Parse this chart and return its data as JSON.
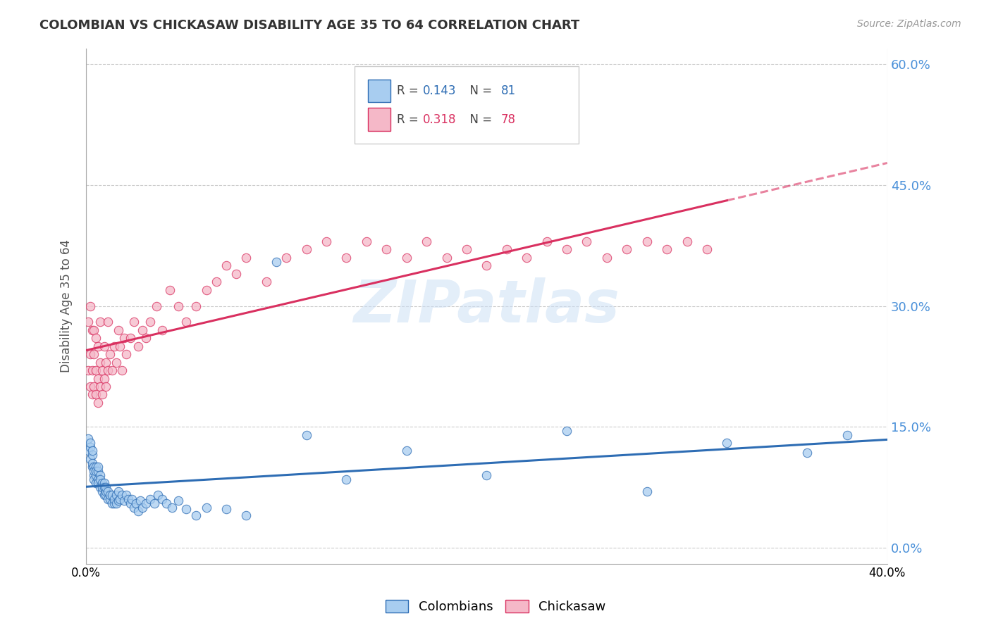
{
  "title": "COLOMBIAN VS CHICKASAW DISABILITY AGE 35 TO 64 CORRELATION CHART",
  "source": "Source: ZipAtlas.com",
  "ylabel": "Disability Age 35 to 64",
  "yticks_labels": [
    "0.0%",
    "15.0%",
    "30.0%",
    "45.0%",
    "60.0%"
  ],
  "ytick_vals": [
    0.0,
    0.15,
    0.3,
    0.45,
    0.6
  ],
  "xlim": [
    0.0,
    0.4
  ],
  "ylim": [
    -0.02,
    0.62
  ],
  "watermark": "ZIPatlas",
  "legend_label1": "Colombians",
  "legend_label2": "Chickasaw",
  "color_colombian": "#a8cdf0",
  "color_chickasaw": "#f5b8c8",
  "trendline_color_colombian": "#2e6db4",
  "trendline_color_chickasaw": "#d93060",
  "yticklabel_color": "#4a90d9",
  "colombian_x": [
    0.001,
    0.001,
    0.002,
    0.002,
    0.002,
    0.003,
    0.003,
    0.003,
    0.003,
    0.004,
    0.004,
    0.004,
    0.004,
    0.005,
    0.005,
    0.005,
    0.005,
    0.006,
    0.006,
    0.006,
    0.006,
    0.007,
    0.007,
    0.007,
    0.008,
    0.008,
    0.008,
    0.009,
    0.009,
    0.009,
    0.01,
    0.01,
    0.01,
    0.011,
    0.011,
    0.012,
    0.012,
    0.013,
    0.013,
    0.014,
    0.014,
    0.015,
    0.015,
    0.016,
    0.016,
    0.017,
    0.018,
    0.019,
    0.02,
    0.021,
    0.022,
    0.023,
    0.024,
    0.025,
    0.026,
    0.027,
    0.028,
    0.03,
    0.032,
    0.034,
    0.036,
    0.038,
    0.04,
    0.043,
    0.046,
    0.05,
    0.055,
    0.06,
    0.07,
    0.08,
    0.095,
    0.11,
    0.13,
    0.16,
    0.2,
    0.24,
    0.28,
    0.32,
    0.36,
    0.38
  ],
  "colombian_y": [
    0.12,
    0.135,
    0.11,
    0.125,
    0.13,
    0.1,
    0.115,
    0.12,
    0.105,
    0.09,
    0.1,
    0.085,
    0.095,
    0.08,
    0.09,
    0.1,
    0.095,
    0.085,
    0.08,
    0.095,
    0.1,
    0.075,
    0.09,
    0.085,
    0.07,
    0.08,
    0.075,
    0.065,
    0.08,
    0.075,
    0.065,
    0.07,
    0.075,
    0.06,
    0.07,
    0.06,
    0.065,
    0.055,
    0.065,
    0.055,
    0.06,
    0.055,
    0.065,
    0.058,
    0.07,
    0.06,
    0.065,
    0.058,
    0.065,
    0.06,
    0.055,
    0.06,
    0.05,
    0.055,
    0.045,
    0.058,
    0.05,
    0.055,
    0.06,
    0.055,
    0.065,
    0.06,
    0.055,
    0.05,
    0.058,
    0.048,
    0.04,
    0.05,
    0.048,
    0.04,
    0.355,
    0.14,
    0.085,
    0.12,
    0.09,
    0.145,
    0.07,
    0.13,
    0.118,
    0.14
  ],
  "chickasaw_x": [
    0.001,
    0.001,
    0.002,
    0.002,
    0.002,
    0.003,
    0.003,
    0.003,
    0.004,
    0.004,
    0.004,
    0.005,
    0.005,
    0.005,
    0.006,
    0.006,
    0.006,
    0.007,
    0.007,
    0.007,
    0.008,
    0.008,
    0.009,
    0.009,
    0.01,
    0.01,
    0.011,
    0.011,
    0.012,
    0.013,
    0.014,
    0.015,
    0.016,
    0.017,
    0.018,
    0.019,
    0.02,
    0.022,
    0.024,
    0.026,
    0.028,
    0.03,
    0.032,
    0.035,
    0.038,
    0.042,
    0.046,
    0.05,
    0.055,
    0.06,
    0.065,
    0.07,
    0.075,
    0.08,
    0.09,
    0.1,
    0.11,
    0.12,
    0.13,
    0.14,
    0.15,
    0.16,
    0.17,
    0.18,
    0.19,
    0.2,
    0.21,
    0.22,
    0.23,
    0.24,
    0.25,
    0.26,
    0.27,
    0.28,
    0.29,
    0.3,
    0.31
  ],
  "chickasaw_y": [
    0.22,
    0.28,
    0.2,
    0.24,
    0.3,
    0.19,
    0.22,
    0.27,
    0.2,
    0.24,
    0.27,
    0.19,
    0.22,
    0.26,
    0.18,
    0.21,
    0.25,
    0.2,
    0.23,
    0.28,
    0.19,
    0.22,
    0.21,
    0.25,
    0.2,
    0.23,
    0.22,
    0.28,
    0.24,
    0.22,
    0.25,
    0.23,
    0.27,
    0.25,
    0.22,
    0.26,
    0.24,
    0.26,
    0.28,
    0.25,
    0.27,
    0.26,
    0.28,
    0.3,
    0.27,
    0.32,
    0.3,
    0.28,
    0.3,
    0.32,
    0.33,
    0.35,
    0.34,
    0.36,
    0.33,
    0.36,
    0.37,
    0.38,
    0.36,
    0.38,
    0.37,
    0.36,
    0.38,
    0.36,
    0.37,
    0.35,
    0.37,
    0.36,
    0.38,
    0.37,
    0.38,
    0.36,
    0.37,
    0.38,
    0.37,
    0.38,
    0.37
  ],
  "trendline_data_xlim_colombian": [
    0.0,
    0.4
  ],
  "trendline_data_xlim_chickasaw": [
    0.0,
    0.32
  ],
  "trendline_dashed_xlim_chickasaw": [
    0.32,
    0.4
  ]
}
